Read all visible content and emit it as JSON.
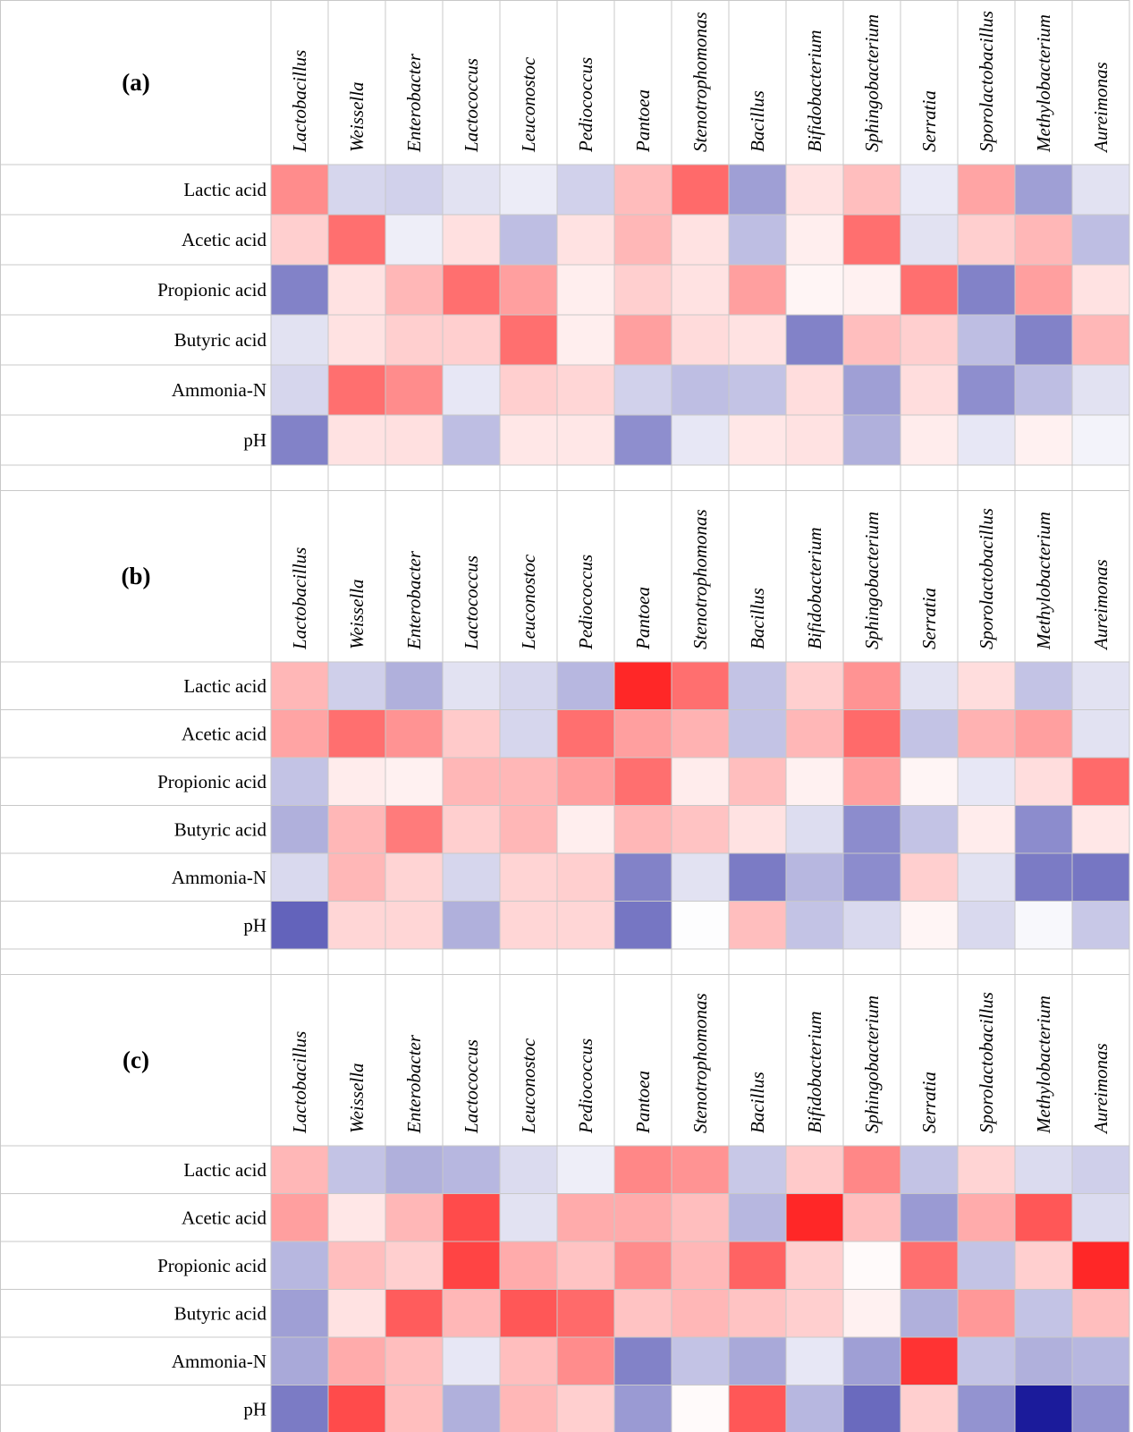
{
  "chart_data": [
    {
      "type": "heatmap",
      "panel_label": "(a)",
      "x_labels": [
        "Lactobacillus",
        "Weissella",
        "Enterobacter",
        "Lactococcus",
        "Leuconostoc",
        "Pediococcus",
        "Pantoea",
        "Stenotrophomonas",
        "Bacillus",
        "Bifidobacterium",
        "Sphingobacterium",
        "Serratia",
        "Sporolactobacillus",
        "Methylobacterium",
        "Aureimonas"
      ],
      "y_labels": [
        "Lactic acid",
        "Acetic acid",
        "Propionic acid",
        "Butyric acid",
        "Ammonia-N",
        "pH"
      ],
      "values": [
        [
          0.48,
          -0.17,
          -0.19,
          -0.12,
          -0.08,
          -0.19,
          0.28,
          0.62,
          -0.4,
          0.12,
          0.27,
          -0.09,
          0.38,
          -0.4,
          -0.12
        ],
        [
          0.2,
          0.6,
          -0.07,
          0.13,
          -0.27,
          0.12,
          0.3,
          0.12,
          -0.27,
          0.07,
          0.6,
          -0.12,
          0.2,
          0.3,
          -0.27
        ],
        [
          -0.52,
          0.12,
          0.3,
          0.6,
          0.4,
          0.07,
          0.2,
          0.12,
          0.4,
          0.04,
          0.06,
          0.6,
          -0.52,
          0.4,
          0.12
        ],
        [
          -0.12,
          0.12,
          0.2,
          0.2,
          0.6,
          0.07,
          0.4,
          0.15,
          0.12,
          -0.52,
          0.27,
          0.2,
          -0.27,
          -0.52,
          0.3
        ],
        [
          -0.17,
          0.6,
          0.48,
          -0.1,
          0.2,
          0.17,
          -0.19,
          -0.27,
          -0.25,
          0.14,
          -0.4,
          0.14,
          -0.47,
          -0.27,
          -0.12
        ],
        [
          -0.52,
          0.12,
          0.13,
          -0.27,
          0.1,
          0.1,
          -0.47,
          -0.1,
          0.1,
          0.12,
          -0.33,
          0.08,
          -0.1,
          0.06,
          -0.05
        ]
      ]
    },
    {
      "type": "heatmap",
      "panel_label": "(b)",
      "x_labels": [
        "Lactobacillus",
        "Weissella",
        "Enterobacter",
        "Lactococcus",
        "Leuconostoc",
        "Pediococcus",
        "Pantoea",
        "Stenotrophomonas",
        "Bacillus",
        "Bifidobacterium",
        "Sphingobacterium",
        "Serratia",
        "Sporolactobacillus",
        "Methylobacterium",
        "Aureimonas"
      ],
      "y_labels": [
        "Lactic acid",
        "Acetic acid",
        "Propionic acid",
        "Butyric acid",
        "Ammonia-N",
        "pH"
      ],
      "values": [
        [
          0.3,
          -0.2,
          -0.33,
          -0.12,
          -0.17,
          -0.3,
          0.9,
          0.6,
          -0.25,
          0.2,
          0.45,
          -0.12,
          0.14,
          -0.25,
          -0.12
        ],
        [
          0.38,
          0.6,
          0.45,
          0.22,
          -0.17,
          0.6,
          0.4,
          0.32,
          -0.25,
          0.3,
          0.62,
          -0.25,
          0.32,
          0.4,
          -0.12
        ],
        [
          -0.25,
          0.08,
          0.06,
          0.3,
          0.3,
          0.4,
          0.6,
          0.08,
          0.27,
          0.06,
          0.4,
          0.04,
          -0.1,
          0.14,
          0.62
        ],
        [
          -0.33,
          0.3,
          0.55,
          0.2,
          0.3,
          0.07,
          0.3,
          0.25,
          0.12,
          -0.14,
          -0.48,
          -0.25,
          0.08,
          -0.48,
          0.1
        ],
        [
          -0.16,
          0.3,
          0.18,
          -0.17,
          0.18,
          0.2,
          -0.52,
          -0.12,
          -0.55,
          -0.3,
          -0.48,
          0.2,
          -0.12,
          -0.55,
          -0.57
        ],
        [
          -0.65,
          0.17,
          0.17,
          -0.33,
          0.17,
          0.17,
          -0.57,
          -0.01,
          0.27,
          -0.25,
          -0.16,
          0.04,
          -0.16,
          -0.03,
          -0.23
        ]
      ]
    },
    {
      "type": "heatmap",
      "panel_label": "(c)",
      "x_labels": [
        "Lactobacillus",
        "Weissella",
        "Enterobacter",
        "Lactococcus",
        "Leuconostoc",
        "Pediococcus",
        "Pantoea",
        "Stenotrophomonas",
        "Bacillus",
        "Bifidobacterium",
        "Sphingobacterium",
        "Serratia",
        "Sporolactobacillus",
        "Methylobacterium",
        "Aureimonas"
      ],
      "y_labels": [
        "Lactic acid",
        "Acetic acid",
        "Propionic acid",
        "Butyric acid",
        "Ammonia-N",
        "pH"
      ],
      "values": [
        [
          0.3,
          -0.25,
          -0.33,
          -0.3,
          -0.15,
          -0.07,
          0.5,
          0.45,
          -0.23,
          0.22,
          0.5,
          -0.25,
          0.18,
          -0.15,
          -0.2
        ],
        [
          0.4,
          0.1,
          0.3,
          0.75,
          -0.12,
          0.35,
          0.35,
          0.27,
          -0.3,
          0.9,
          0.27,
          -0.42,
          0.35,
          0.7,
          -0.15
        ],
        [
          -0.3,
          0.27,
          0.2,
          0.78,
          0.35,
          0.25,
          0.48,
          0.3,
          0.65,
          0.2,
          0.02,
          0.6,
          -0.25,
          0.2,
          0.9
        ],
        [
          -0.4,
          0.12,
          0.68,
          0.3,
          0.7,
          0.62,
          0.25,
          0.3,
          0.25,
          0.2,
          0.06,
          -0.33,
          0.43,
          -0.25,
          0.27
        ],
        [
          -0.36,
          0.35,
          0.27,
          -0.1,
          0.27,
          0.48,
          -0.52,
          -0.25,
          -0.36,
          -0.1,
          -0.4,
          0.85,
          -0.25,
          -0.33,
          -0.3
        ],
        [
          -0.55,
          0.75,
          0.27,
          -0.33,
          0.3,
          0.2,
          -0.42,
          0.02,
          0.7,
          -0.3,
          -0.62,
          0.2,
          -0.45,
          -0.95,
          -0.45
        ]
      ]
    }
  ]
}
